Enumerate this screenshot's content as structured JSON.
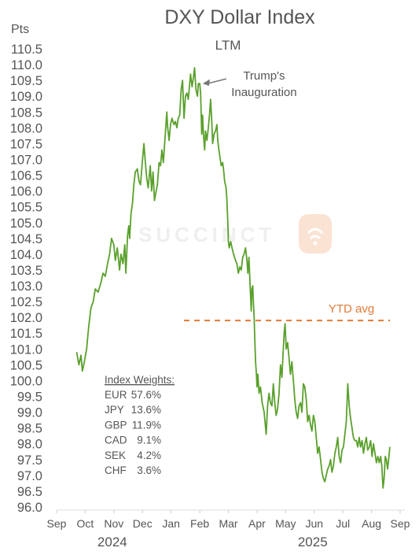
{
  "chart_data": {
    "type": "line",
    "title": "DXY Dollar Index",
    "subtitle": "LTM",
    "ylabel": "Pts",
    "ylim": [
      96.0,
      110.5
    ],
    "yticks": [
      "110.5",
      "110.0",
      "109.5",
      "109.0",
      "108.5",
      "108.0",
      "107.5",
      "107.0",
      "106.5",
      "106.0",
      "105.5",
      "105.0",
      "104.5",
      "104.0",
      "103.5",
      "103.0",
      "102.5",
      "102.0",
      "101.5",
      "101.0",
      "100.5",
      "100.0",
      "99.5",
      "99.0",
      "98.5",
      "98.0",
      "97.5",
      "97.0",
      "96.5",
      "96.0"
    ],
    "xticks": [
      "Sep",
      "Oct",
      "Nov",
      "Dec",
      "Jan",
      "Feb",
      "Mar",
      "Apr",
      "May",
      "Jun",
      "Jul",
      "Aug",
      "Sep"
    ],
    "year_labels": [
      {
        "label": "2024",
        "month_index": 2
      },
      {
        "label": "2025",
        "month_index": 9
      }
    ],
    "series": [
      {
        "color": "#5aa02c",
        "points": [
          [
            0.7,
            100.9
          ],
          [
            0.78,
            100.5
          ],
          [
            0.85,
            100.8
          ],
          [
            0.9,
            100.3
          ],
          [
            0.97,
            100.6
          ],
          [
            1.05,
            101.0
          ],
          [
            1.12,
            101.7
          ],
          [
            1.2,
            102.3
          ],
          [
            1.28,
            102.5
          ],
          [
            1.35,
            102.9
          ],
          [
            1.45,
            102.8
          ],
          [
            1.55,
            103.1
          ],
          [
            1.62,
            103.4
          ],
          [
            1.7,
            103.3
          ],
          [
            1.78,
            103.7
          ],
          [
            1.85,
            104.0
          ],
          [
            1.92,
            104.5
          ],
          [
            2.0,
            104.3
          ],
          [
            2.05,
            103.8
          ],
          [
            2.12,
            104.2
          ],
          [
            2.2,
            103.5
          ],
          [
            2.25,
            104.0
          ],
          [
            2.32,
            103.7
          ],
          [
            2.38,
            104.3
          ],
          [
            2.42,
            103.4
          ],
          [
            2.48,
            104.6
          ],
          [
            2.52,
            104.9
          ],
          [
            2.55,
            104.5
          ],
          [
            2.6,
            105.3
          ],
          [
            2.65,
            105.6
          ],
          [
            2.7,
            106.2
          ],
          [
            2.75,
            106.6
          ],
          [
            2.82,
            106.7
          ],
          [
            2.88,
            106.3
          ],
          [
            2.93,
            106.2
          ],
          [
            3.0,
            107.0
          ],
          [
            3.05,
            107.5
          ],
          [
            3.1,
            106.9
          ],
          [
            3.15,
            106.4
          ],
          [
            3.2,
            106.1
          ],
          [
            3.27,
            106.8
          ],
          [
            3.32,
            106.0
          ],
          [
            3.37,
            106.6
          ],
          [
            3.42,
            105.7
          ],
          [
            3.48,
            106.0
          ],
          [
            3.52,
            106.2
          ],
          [
            3.58,
            106.9
          ],
          [
            3.63,
            106.8
          ],
          [
            3.68,
            107.3
          ],
          [
            3.73,
            106.9
          ],
          [
            3.78,
            107.6
          ],
          [
            3.85,
            108.5
          ],
          [
            3.88,
            108.0
          ],
          [
            3.93,
            107.6
          ],
          [
            3.98,
            108.1
          ],
          [
            4.03,
            108.3
          ],
          [
            4.1,
            108.1
          ],
          [
            4.15,
            108.2
          ],
          [
            4.2,
            108.0
          ],
          [
            4.25,
            108.3
          ],
          [
            4.3,
            108.4
          ],
          [
            4.35,
            109.2
          ],
          [
            4.4,
            109.5
          ],
          [
            4.45,
            108.3
          ],
          [
            4.5,
            109.0
          ],
          [
            4.55,
            109.1
          ],
          [
            4.6,
            108.9
          ],
          [
            4.65,
            109.4
          ],
          [
            4.68,
            109.7
          ],
          [
            4.73,
            109.3
          ],
          [
            4.78,
            109.6
          ],
          [
            4.82,
            109.9
          ],
          [
            4.87,
            109.2
          ],
          [
            4.92,
            109.0
          ],
          [
            4.95,
            109.4
          ],
          [
            5.0,
            109.4
          ],
          [
            5.03,
            109.1
          ],
          [
            5.07,
            107.8
          ],
          [
            5.1,
            108.4
          ],
          [
            5.13,
            107.8
          ],
          [
            5.17,
            107.3
          ],
          [
            5.2,
            107.9
          ],
          [
            5.25,
            107.6
          ],
          [
            5.3,
            108.0
          ],
          [
            5.35,
            108.5
          ],
          [
            5.38,
            108.9
          ],
          [
            5.42,
            108.2
          ],
          [
            5.45,
            107.5
          ],
          [
            5.5,
            107.8
          ],
          [
            5.55,
            107.9
          ],
          [
            5.6,
            108.1
          ],
          [
            5.63,
            107.6
          ],
          [
            5.67,
            107.3
          ],
          [
            5.7,
            107.1
          ],
          [
            5.75,
            106.8
          ],
          [
            5.8,
            106.9
          ],
          [
            5.83,
            106.7
          ],
          [
            5.87,
            106.3
          ],
          [
            5.92,
            106.1
          ],
          [
            5.95,
            105.7
          ],
          [
            5.98,
            105.0
          ],
          [
            6.0,
            104.4
          ],
          [
            6.03,
            104.2
          ],
          [
            6.08,
            104.4
          ],
          [
            6.13,
            104.2
          ],
          [
            6.18,
            104.0
          ],
          [
            6.25,
            103.8
          ],
          [
            6.3,
            103.7
          ],
          [
            6.35,
            103.4
          ],
          [
            6.4,
            103.6
          ],
          [
            6.45,
            103.5
          ],
          [
            6.5,
            103.9
          ],
          [
            6.55,
            104.0
          ],
          [
            6.6,
            104.2
          ],
          [
            6.65,
            103.8
          ],
          [
            6.68,
            103.4
          ],
          [
            6.72,
            103.9
          ],
          [
            6.75,
            103.2
          ],
          [
            6.78,
            102.6
          ],
          [
            6.8,
            102.2
          ],
          [
            6.82,
            102.9
          ],
          [
            6.85,
            103.0
          ],
          [
            6.88,
            102.4
          ],
          [
            6.9,
            102.0
          ],
          [
            6.92,
            101.4
          ],
          [
            6.95,
            100.6
          ],
          [
            6.98,
            100.2
          ],
          [
            7.0,
            99.8
          ],
          [
            7.03,
            100.2
          ],
          [
            7.07,
            99.6
          ],
          [
            7.12,
            99.8
          ],
          [
            7.18,
            99.3
          ],
          [
            7.25,
            99.0
          ],
          [
            7.32,
            98.3
          ],
          [
            7.37,
            99.2
          ],
          [
            7.42,
            99.6
          ],
          [
            7.47,
            99.3
          ],
          [
            7.52,
            99.2
          ],
          [
            7.57,
            99.9
          ],
          [
            7.62,
            99.3
          ],
          [
            7.67,
            98.9
          ],
          [
            7.72,
            99.1
          ],
          [
            7.77,
            99.6
          ],
          [
            7.82,
            100.5
          ],
          [
            7.87,
            100.1
          ],
          [
            7.92,
            101.0
          ],
          [
            7.95,
            101.5
          ],
          [
            7.98,
            101.8
          ],
          [
            8.02,
            101.0
          ],
          [
            8.07,
            101.2
          ],
          [
            8.12,
            100.7
          ],
          [
            8.17,
            100.2
          ],
          [
            8.22,
            100.6
          ],
          [
            8.27,
            100.0
          ],
          [
            8.32,
            99.4
          ],
          [
            8.37,
            99.0
          ],
          [
            8.42,
            98.8
          ],
          [
            8.47,
            99.2
          ],
          [
            8.52,
            99.3
          ],
          [
            8.57,
            99.0
          ],
          [
            8.62,
            99.9
          ],
          [
            8.67,
            99.8
          ],
          [
            8.72,
            99.4
          ],
          [
            8.77,
            98.7
          ],
          [
            8.82,
            98.9
          ],
          [
            8.87,
            98.6
          ],
          [
            8.92,
            98.4
          ],
          [
            8.97,
            98.9
          ],
          [
            9.02,
            98.7
          ],
          [
            9.07,
            98.2
          ],
          [
            9.12,
            97.7
          ],
          [
            9.17,
            97.9
          ],
          [
            9.22,
            97.5
          ],
          [
            9.27,
            97.1
          ],
          [
            9.32,
            96.9
          ],
          [
            9.37,
            96.8
          ],
          [
            9.42,
            97.0
          ],
          [
            9.47,
            97.2
          ],
          [
            9.52,
            97.3
          ],
          [
            9.57,
            97.5
          ],
          [
            9.62,
            97.1
          ],
          [
            9.67,
            97.3
          ],
          [
            9.72,
            97.7
          ],
          [
            9.77,
            97.9
          ],
          [
            9.82,
            98.2
          ],
          [
            9.87,
            97.6
          ],
          [
            9.92,
            97.4
          ],
          [
            9.97,
            97.8
          ],
          [
            10.02,
            97.9
          ],
          [
            10.07,
            98.3
          ],
          [
            10.12,
            98.7
          ],
          [
            10.17,
            99.9
          ],
          [
            10.22,
            99.2
          ],
          [
            10.27,
            98.8
          ],
          [
            10.32,
            98.5
          ],
          [
            10.37,
            98.2
          ],
          [
            10.42,
            98.1
          ],
          [
            10.47,
            98.1
          ],
          [
            10.52,
            97.9
          ],
          [
            10.57,
            98.2
          ],
          [
            10.62,
            97.9
          ],
          [
            10.67,
            98.1
          ],
          [
            10.72,
            97.7
          ],
          [
            10.77,
            98.0
          ],
          [
            10.82,
            98.2
          ],
          [
            10.87,
            97.8
          ],
          [
            10.92,
            97.9
          ],
          [
            10.97,
            98.1
          ],
          [
            11.02,
            97.6
          ],
          [
            11.07,
            98.0
          ],
          [
            11.12,
            97.7
          ],
          [
            11.17,
            97.4
          ],
          [
            11.22,
            97.6
          ],
          [
            11.27,
            97.4
          ],
          [
            11.32,
            97.6
          ],
          [
            11.36,
            97.3
          ],
          [
            11.4,
            96.6
          ],
          [
            11.44,
            96.9
          ],
          [
            11.48,
            97.6
          ],
          [
            11.52,
            97.5
          ],
          [
            11.56,
            97.2
          ],
          [
            11.6,
            97.5
          ],
          [
            11.64,
            97.9
          ]
        ]
      }
    ],
    "reference_lines": [
      {
        "label": "YTD avg",
        "y": 101.9,
        "x_start": 4.45,
        "x_end": 11.65,
        "color": "#e07a38",
        "style": "dashed"
      }
    ],
    "annotations": [
      {
        "lines": [
          "Trump's",
          "Inauguration"
        ],
        "x": 5.05,
        "y": 109.4
      }
    ],
    "weights_box": {
      "heading": "Index Weights:",
      "rows": [
        {
          "currency": "EUR",
          "weight": "57.6%"
        },
        {
          "currency": "JPY",
          "weight": "13.6%"
        },
        {
          "currency": "GBP",
          "weight": "11.9%"
        },
        {
          "currency": "CAD",
          "weight": "9.1%"
        },
        {
          "currency": "SEK",
          "weight": "4.2%"
        },
        {
          "currency": "CHF",
          "weight": "3.6%"
        }
      ]
    },
    "watermark": "SUCCINCT",
    "grid": false,
    "legend": "none"
  }
}
